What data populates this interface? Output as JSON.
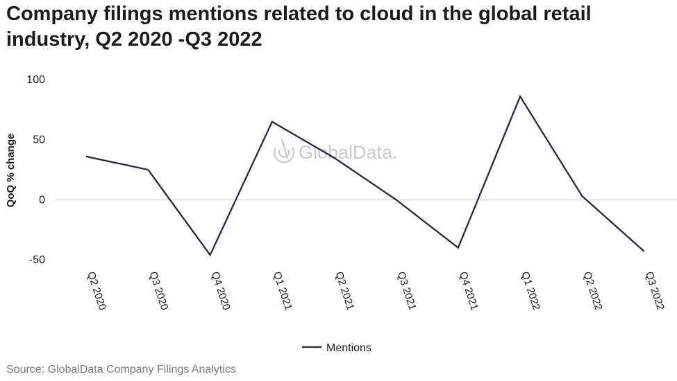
{
  "page": {
    "title": "Company filings mentions related to cloud in the global retail industry, Q2 2020 -Q3 2022",
    "source": "Source: GlobalData Company Filings Analytics",
    "watermark": "GlobalData."
  },
  "chart_data": {
    "type": "line",
    "title": "Company filings mentions related to cloud in the global retail industry, Q2 2020 -Q3 2022",
    "xlabel": "",
    "ylabel": "QoQ % change",
    "ylim": [
      -50,
      100
    ],
    "yticks": [
      100,
      50,
      0,
      -50
    ],
    "categories": [
      "Q2 2020",
      "Q3 2020",
      "Q4 2020",
      "Q1 2021",
      "Q2 2021",
      "Q3 2021",
      "Q4 2021",
      "Q1 2022",
      "Q2 2022",
      "Q3 2022"
    ],
    "series": [
      {
        "name": "Mentions",
        "color": "#2b2640",
        "values": [
          36,
          25,
          -46,
          65,
          35,
          0,
          -40,
          86,
          3,
          -43
        ]
      }
    ],
    "legend_position": "bottom",
    "grid": "zero-line only",
    "colors": {
      "line": "#2b2640",
      "zero_line": "#d0d0d0",
      "watermark": "#c4c1cc"
    }
  }
}
